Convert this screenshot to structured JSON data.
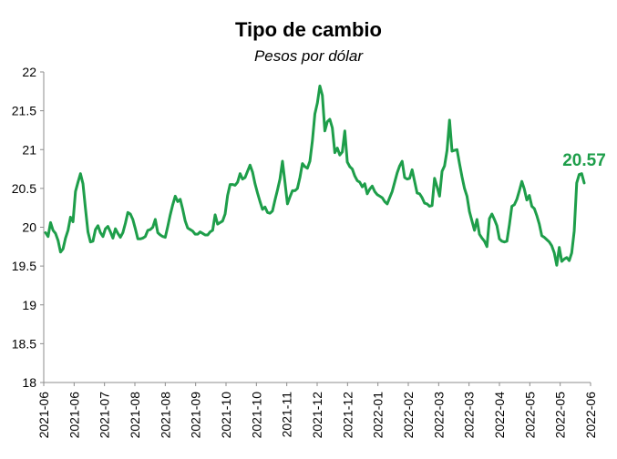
{
  "chart_data": {
    "type": "line",
    "title": "Tipo de cambio",
    "subtitle": "Pesos por dólar",
    "xlabel": "",
    "ylabel": "",
    "ylim": [
      18,
      22
    ],
    "y_ticks": [
      "22",
      "21.5",
      "21",
      "20.5",
      "20",
      "19.5",
      "19",
      "18.5",
      "18"
    ],
    "x_ticks": [
      "2021-06",
      "2021-06",
      "2021-07",
      "2021-08",
      "2021-08",
      "2021-09",
      "2021-10",
      "2021-10",
      "2021-11",
      "2021-12",
      "2021-12",
      "2022-01",
      "2022-02",
      "2022-03",
      "2022-03",
      "2022-04",
      "2022-05",
      "2022-05",
      "2022-06"
    ],
    "grid": false,
    "legend": "none",
    "line_color": "#1E9E4A",
    "end_label": "20.57",
    "series": [
      {
        "values": [
          19.93,
          19.88,
          20.06,
          19.96,
          19.92,
          19.83,
          19.68,
          19.72,
          19.86,
          19.96,
          20.13,
          20.07,
          20.46,
          20.58,
          20.69,
          20.56,
          20.24,
          19.94,
          19.81,
          19.82,
          19.97,
          20.02,
          19.93,
          19.88,
          19.98,
          20.01,
          19.94,
          19.86,
          19.98,
          19.92,
          19.87,
          19.93,
          20.05,
          20.19,
          20.17,
          20.1,
          19.98,
          19.85,
          19.85,
          19.86,
          19.88,
          19.96,
          19.97,
          20.0,
          20.1,
          19.93,
          19.9,
          19.88,
          19.87,
          20.01,
          20.16,
          20.29,
          20.4,
          20.33,
          20.36,
          20.23,
          20.08,
          19.99,
          19.97,
          19.95,
          19.91,
          19.91,
          19.94,
          19.92,
          19.9,
          19.9,
          19.94,
          19.96,
          20.16,
          20.04,
          20.06,
          20.08,
          20.17,
          20.41,
          20.55,
          20.55,
          20.54,
          20.58,
          20.69,
          20.62,
          20.64,
          20.72,
          20.8,
          20.71,
          20.56,
          20.44,
          20.33,
          20.23,
          20.26,
          20.19,
          20.18,
          20.21,
          20.35,
          20.48,
          20.62,
          20.85,
          20.58,
          20.3,
          20.39,
          20.47,
          20.47,
          20.5,
          20.64,
          20.82,
          20.78,
          20.76,
          20.85,
          21.11,
          21.46,
          21.6,
          21.82,
          21.7,
          21.24,
          21.36,
          21.39,
          21.28,
          20.96,
          21.02,
          20.93,
          20.97,
          21.24,
          20.84,
          20.78,
          20.75,
          20.66,
          20.6,
          20.58,
          20.52,
          20.56,
          20.43,
          20.49,
          20.53,
          20.46,
          20.42,
          20.4,
          20.38,
          20.33,
          20.3,
          20.38,
          20.46,
          20.58,
          20.7,
          20.79,
          20.85,
          20.64,
          20.62,
          20.63,
          20.74,
          20.59,
          20.44,
          20.43,
          20.38,
          20.31,
          20.3,
          20.27,
          20.28,
          20.63,
          20.52,
          20.4,
          20.72,
          20.79,
          20.99,
          21.38,
          20.98,
          20.99,
          21.0,
          20.82,
          20.65,
          20.5,
          20.4,
          20.2,
          20.08,
          19.96,
          20.1,
          19.91,
          19.86,
          19.82,
          19.75,
          20.11,
          20.17,
          20.1,
          20.02,
          19.85,
          19.82,
          19.81,
          19.82,
          20.03,
          20.27,
          20.29,
          20.36,
          20.47,
          20.59,
          20.49,
          20.35,
          20.41,
          20.27,
          20.24,
          20.15,
          20.04,
          19.89,
          19.87,
          19.84,
          19.81,
          19.76,
          19.67,
          19.51,
          19.74,
          19.56,
          19.59,
          19.61,
          19.57,
          19.67,
          19.95,
          20.57,
          20.68,
          20.69,
          20.57
        ]
      }
    ]
  }
}
